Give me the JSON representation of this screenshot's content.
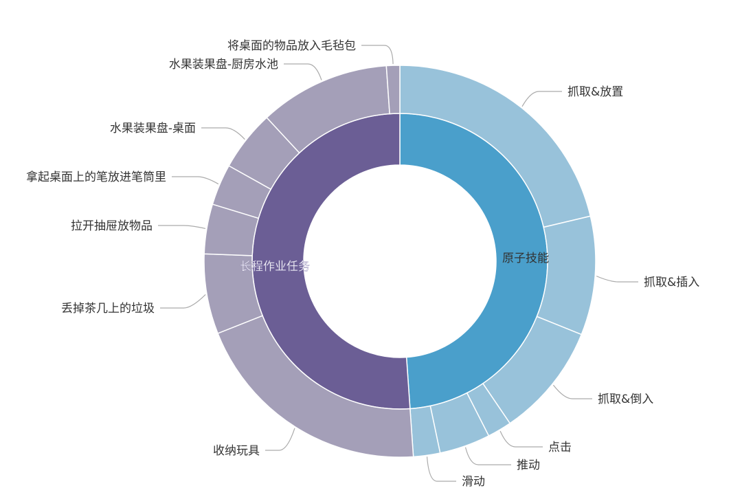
{
  "chart_data": {
    "type": "sunburst",
    "unit": "percent of total (estimated from angles)",
    "colors": {
      "inner": [
        "#4a9fcb",
        "#6b5e95"
      ],
      "outer": [
        "#98c2da",
        "#a49fb8"
      ]
    },
    "groups": [
      {
        "name": "原子技能",
        "value": 48.9,
        "children": [
          {
            "name": "抓取&放置",
            "value": 21.3
          },
          {
            "name": "抓取&插入",
            "value": 9.8
          },
          {
            "name": "抓取&倒入",
            "value": 9.4
          },
          {
            "name": "点击",
            "value": 2.0
          },
          {
            "name": "推动",
            "value": 4.2
          },
          {
            "name": "滑动",
            "value": 2.2
          }
        ]
      },
      {
        "name": "长程作业任务",
        "value": 51.1,
        "children": [
          {
            "name": "收纳玩具",
            "value": 20.1
          },
          {
            "name": "丢掉茶几上的垃圾",
            "value": 6.6
          },
          {
            "name": "拉开抽屉放物品",
            "value": 4.1
          },
          {
            "name": "拿起桌面上的笔放进笔筒里",
            "value": 3.4
          },
          {
            "name": "水果装果盘-桌面",
            "value": 5.0
          },
          {
            "name": "水果装果盘-厨房水池",
            "value": 10.8
          },
          {
            "name": "将桌面的物品放入毛毡包",
            "value": 1.1
          }
        ]
      }
    ]
  }
}
